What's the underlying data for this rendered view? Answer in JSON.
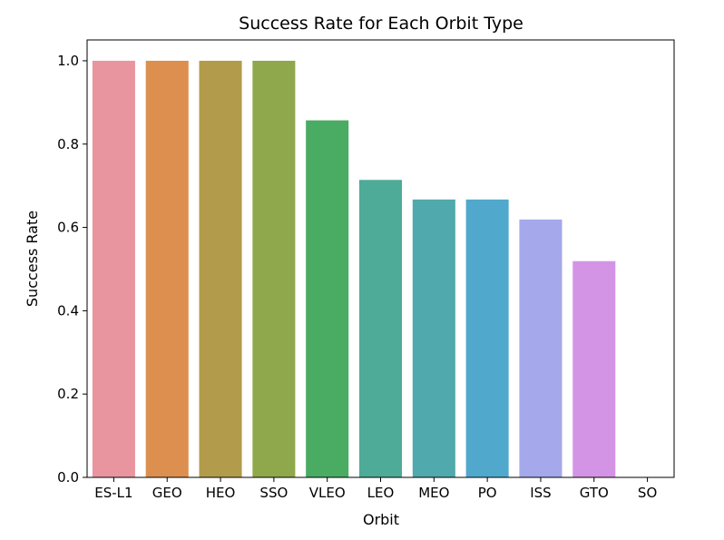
{
  "chart_data": {
    "type": "bar",
    "title": "Success Rate for Each Orbit Type",
    "xlabel": "Orbit",
    "ylabel": "Success Rate",
    "categories": [
      "ES-L1",
      "GEO",
      "HEO",
      "SSO",
      "VLEO",
      "LEO",
      "MEO",
      "PO",
      "ISS",
      "GTO",
      "SO"
    ],
    "values": [
      1.0,
      1.0,
      1.0,
      1.0,
      0.857,
      0.714,
      0.667,
      0.667,
      0.619,
      0.519,
      0.0
    ],
    "colors": [
      "#e8959f",
      "#dc8f4f",
      "#b29c4b",
      "#8fa84b",
      "#4aab63",
      "#4dab97",
      "#4fa9ad",
      "#50a9cc",
      "#a5a8ea",
      "#d494e6",
      "#e890c8"
    ],
    "yticks": [
      0.0,
      0.2,
      0.4,
      0.6,
      0.8,
      1.0
    ],
    "ytick_labels": [
      "0.0",
      "0.2",
      "0.4",
      "0.6",
      "0.8",
      "1.0"
    ],
    "ylim": [
      0,
      1.05
    ],
    "grid": false,
    "legend": "none"
  }
}
